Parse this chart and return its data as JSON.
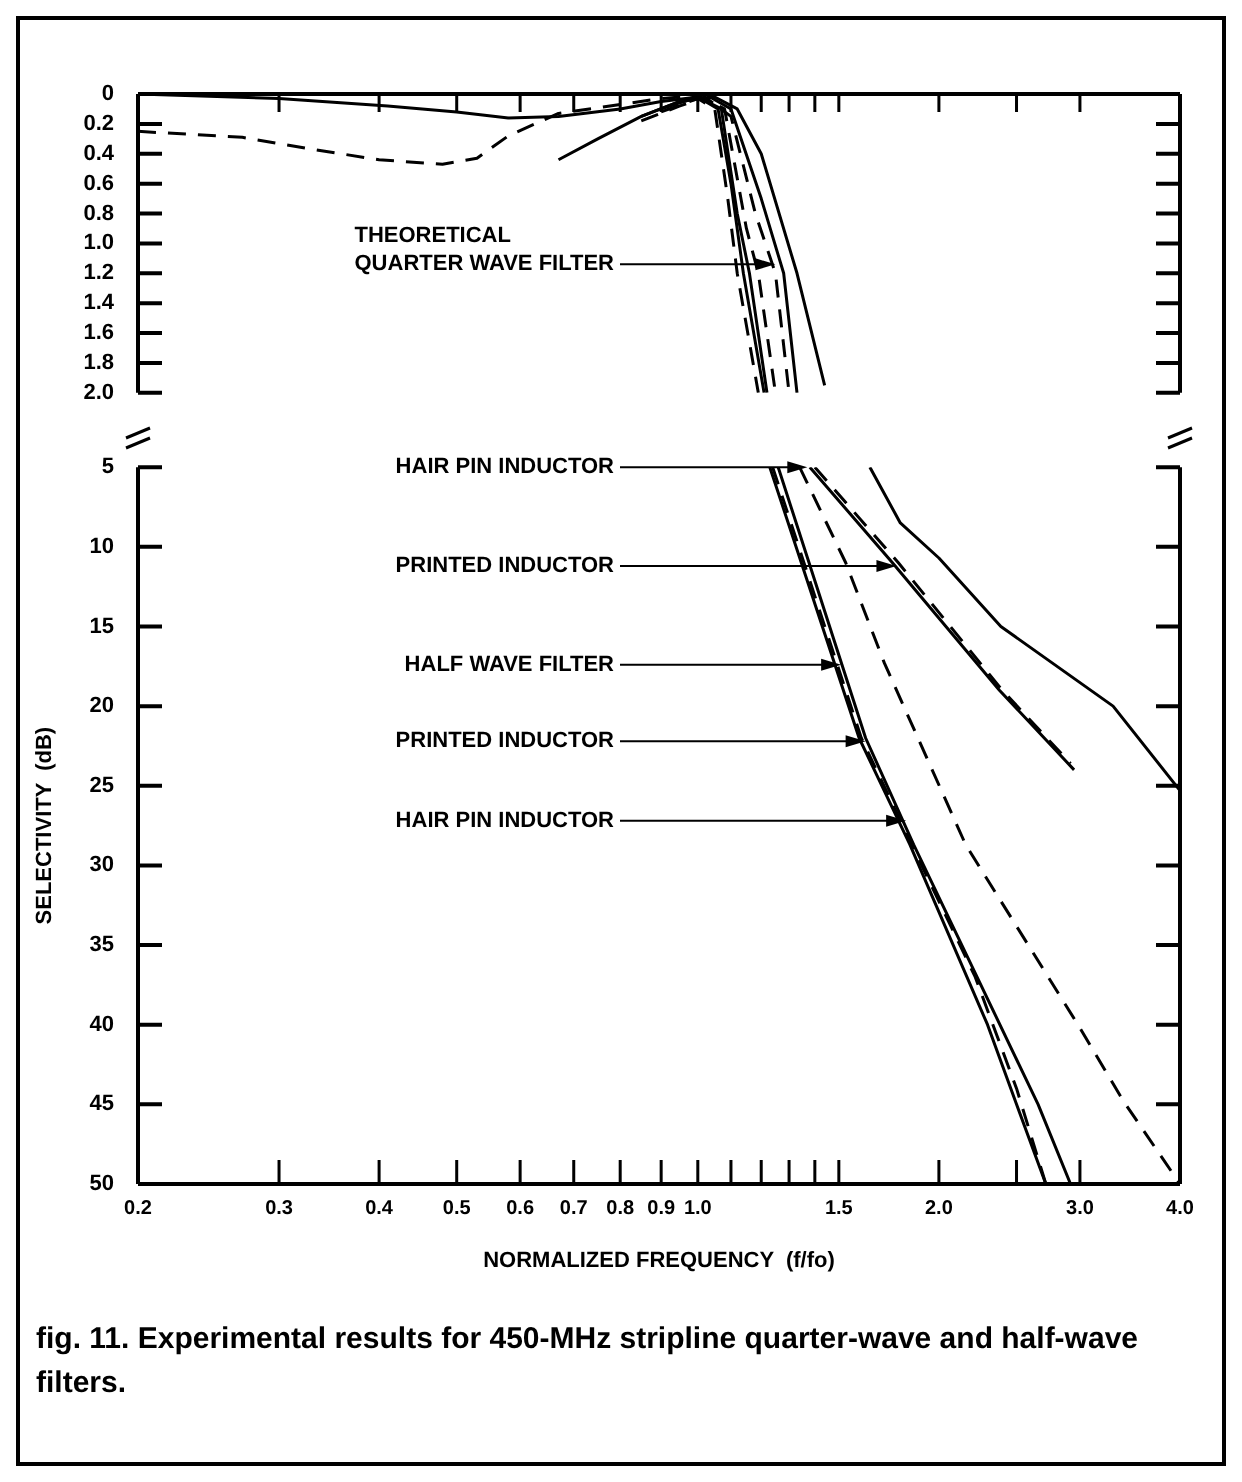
{
  "chart_data": [
    {
      "type": "line",
      "log": "x",
      "tick_labels": "y",
      "marker": "none",
      "xlim": [
        0.2,
        4.0
      ],
      "xticks": [
        {
          "value": 0.3,
          "label": null
        },
        {
          "value": 0.4,
          "label": null
        },
        {
          "value": 0.5,
          "label": null
        },
        {
          "value": 0.6,
          "label": null
        },
        {
          "value": 0.7,
          "label": null
        },
        {
          "value": 0.8,
          "label": null
        },
        {
          "value": 0.9,
          "label": null
        },
        {
          "value": 1,
          "label": null
        },
        {
          "value": 1.1,
          "label": null
        },
        {
          "value": 1.2,
          "label": null
        },
        {
          "value": 1.3,
          "label": null
        },
        {
          "value": 1.4,
          "label": null
        },
        {
          "value": 1.5,
          "label": null
        },
        {
          "value": 2,
          "label": null
        },
        {
          "value": 2.5,
          "label": null
        },
        {
          "value": 3,
          "label": null
        },
        {
          "value": 4,
          "label": null
        }
      ],
      "ylim": [
        2.0,
        0
      ],
      "yticks": [
        0,
        0.2,
        0.4,
        0.6,
        0.8,
        {
          "value": 1,
          "label": "1.0"
        },
        1.2,
        1.4,
        1.6,
        1.8,
        {
          "value": 2,
          "label": "2.0"
        }
      ],
      "series": [
        {
          "color": "#000000",
          "line_style": "solid",
          "x": [
            0.2,
            0.3,
            0.41,
            0.5,
            0.58,
            0.67,
            0.8,
            0.9,
            1.0,
            1.06,
            1.1,
            1.14,
            1.21
          ],
          "values": [
            0,
            0.03,
            0.08,
            0.12,
            0.16,
            0.15,
            0.1,
            0.05,
            0.02,
            0.1,
            0.6,
            1.2,
            2.0
          ]
        },
        {
          "color": "#000000",
          "line_style": "dashed",
          "x": [
            0.2,
            0.27,
            0.33,
            0.4,
            0.48,
            0.53,
            0.58,
            0.67,
            0.8,
            0.9,
            1.0,
            1.08,
            1.15,
            1.19,
            1.25
          ],
          "values": [
            0.25,
            0.29,
            0.37,
            0.44,
            0.47,
            0.43,
            0.28,
            0.13,
            0.07,
            0.03,
            0.01,
            0.1,
            0.9,
            1.2,
            2.0
          ]
        },
        {
          "color": "#000000",
          "line_style": "solid",
          "x": [
            0.67,
            0.75,
            0.85,
            0.95,
            1.05,
            1.12,
            1.2,
            1.33,
            1.44
          ],
          "values": [
            0.44,
            0.3,
            0.15,
            0.05,
            0.02,
            0.1,
            0.4,
            1.2,
            1.95
          ]
        },
        {
          "color": "#000000",
          "line_style": "solid",
          "x": [
            0.85,
            0.95,
            1.02,
            1.1,
            1.2,
            1.28,
            1.33
          ],
          "values": [
            0.15,
            0.05,
            0,
            0.1,
            0.7,
            1.2,
            2.0
          ]
        },
        {
          "color": "#000000",
          "line_style": "dashed",
          "x": [
            0.85,
            0.95,
            1.02,
            1.1,
            1.18,
            1.25,
            1.3
          ],
          "values": [
            0.18,
            0.08,
            0.02,
            0.15,
            0.8,
            1.2,
            2.0
          ]
        },
        {
          "color": "#000000",
          "line_style": "solid",
          "x": [
            0.9,
            1.0,
            1.07,
            1.12,
            1.16,
            1.22
          ],
          "values": [
            0.1,
            0.02,
            0.1,
            0.8,
            1.2,
            2.0
          ]
        },
        {
          "color": "#000000",
          "line_style": "dashed",
          "x": [
            0.9,
            1.0,
            1.05,
            1.09,
            1.12,
            1.19
          ],
          "values": [
            0.12,
            0.03,
            0.1,
            0.7,
            1.2,
            2.0
          ]
        }
      ],
      "annotations": [
        {
          "text": "THEORETICAL QUARTER WAVE FILTER",
          "x": 1.25,
          "y": 1.14
        }
      ]
    },
    {
      "type": "line",
      "log": "x",
      "marker": "none",
      "xlabel": "NORMALIZED FREQUENCY  (f/fo)",
      "ylabel": "SELECTIVITY  (dB)",
      "xlim": [
        0.2,
        4.0
      ],
      "xticks": [
        0.2,
        0.3,
        0.4,
        0.5,
        0.6,
        0.7,
        0.8,
        0.9,
        {
          "value": 1,
          "label": "1.0"
        },
        {
          "value": 1.1,
          "label": null
        },
        {
          "value": 1.2,
          "label": null
        },
        {
          "value": 1.3,
          "label": null
        },
        {
          "value": 1.4,
          "label": null
        },
        1.5,
        {
          "value": 2,
          "label": "2.0"
        },
        {
          "value": 2.5,
          "label": null
        },
        {
          "value": 3,
          "label": "3.0"
        },
        {
          "value": 4,
          "label": "4.0"
        }
      ],
      "ylim": [
        50,
        5
      ],
      "yticks": [
        5,
        10,
        15,
        20,
        25,
        30,
        35,
        40,
        45,
        50
      ],
      "series": [
        {
          "color": "#000000",
          "line_style": "solid",
          "x": [
            1.23,
            1.59,
            1.84,
            2.3,
            2.5,
            2.72
          ],
          "values": [
            5,
            22,
            28.7,
            40,
            45,
            50
          ]
        },
        {
          "color": "#000000",
          "line_style": "dashed",
          "x": [
            1.34,
            1.53,
            1.71,
            2.16,
            3.0,
            3.4,
            4.0
          ],
          "values": [
            5,
            11,
            17.3,
            28.7,
            40.2,
            44.8,
            50
          ]
        },
        {
          "color": "#000000",
          "line_style": "solid",
          "x": [
            1.64,
            1.79,
            2.0,
            2.39,
            3.3,
            4.0
          ],
          "values": [
            5,
            8.5,
            10.7,
            15,
            20,
            25.3
          ]
        },
        {
          "color": "#000000",
          "line_style": "solid",
          "x": [
            1.38,
            1.75,
            2.38,
            2.95
          ],
          "values": [
            5,
            11,
            19,
            24
          ]
        },
        {
          "color": "#000000",
          "line_style": "dashed",
          "x": [
            1.4,
            1.78,
            2.4,
            2.92
          ],
          "values": [
            5,
            11,
            19,
            23.6
          ]
        },
        {
          "color": "#000000",
          "line_style": "solid",
          "x": [
            1.26,
            1.62,
            1.86,
            2.66,
            2.92
          ],
          "values": [
            5,
            22,
            28.7,
            45,
            50
          ]
        },
        {
          "color": "#000000",
          "line_style": "dashed",
          "x": [
            1.24,
            1.6,
            1.85,
            2.22,
            2.5,
            2.72
          ],
          "values": [
            5,
            22,
            28.7,
            37,
            44,
            50
          ]
        }
      ],
      "annotations": [
        {
          "text": "HAIR PIN INDUCTOR",
          "x": 1.37,
          "y": 5
        },
        {
          "text": "PRINTED INDUCTOR",
          "x": 1.77,
          "y": 11.2
        },
        {
          "text": "HALF WAVE FILTER",
          "x": 1.51,
          "y": 17.4
        },
        {
          "text": "PRINTED INDUCTOR",
          "x": 1.62,
          "y": 22.2
        },
        {
          "text": "HAIR PIN INDUCTOR",
          "x": 1.82,
          "y": 27.2
        },
        "fig. 11. Experimental results for 450-MHz stripline quarter-wave and half-wave filters."
      ]
    }
  ]
}
